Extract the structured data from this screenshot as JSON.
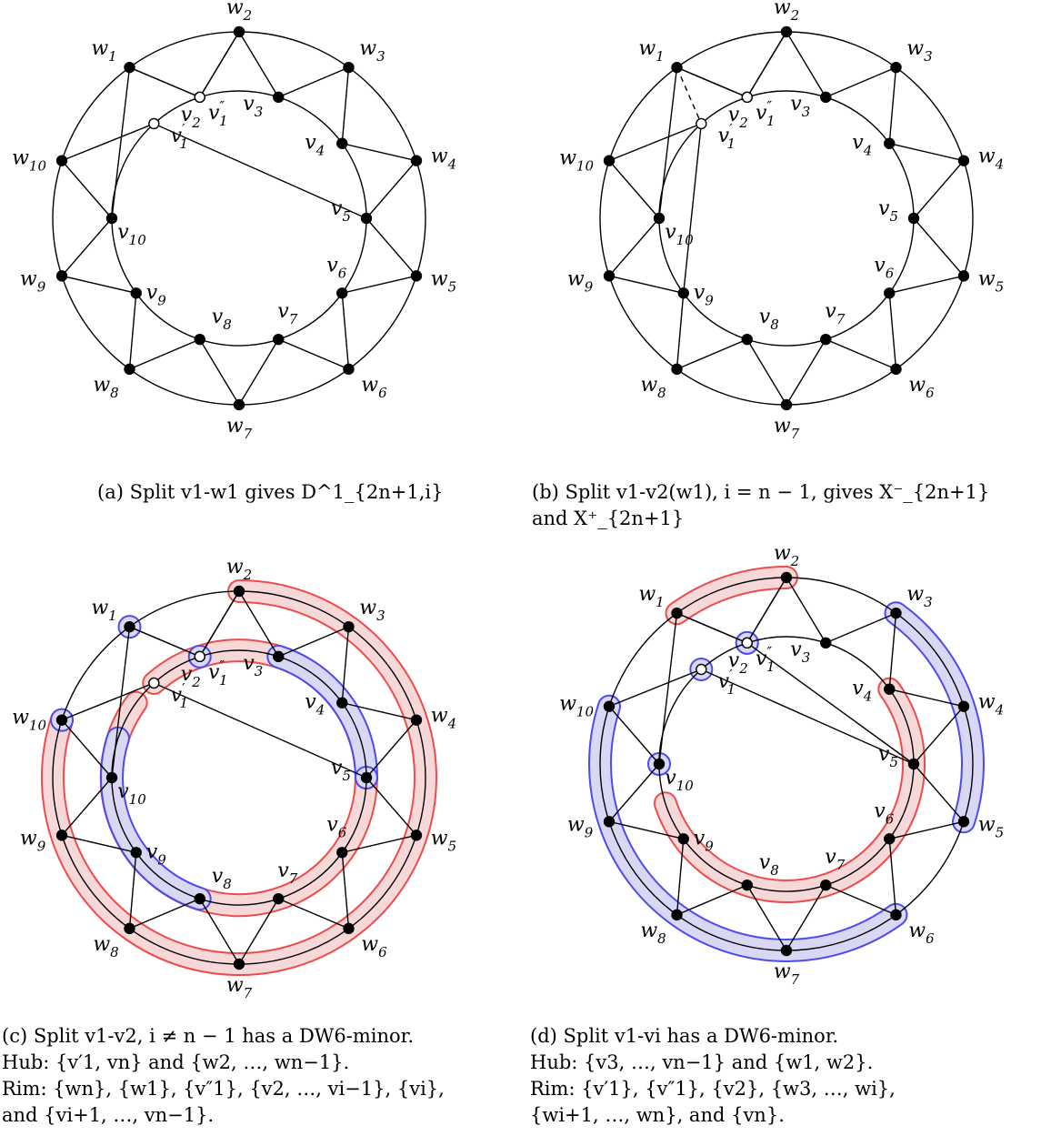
{
  "captions": {
    "a": [
      "(a) Split v1-w1 gives D^1_{2n+1,i}"
    ],
    "b": [
      "(b) Split v1-v2(w1), i = n − 1, gives X⁻_{2n+1}",
      "and X⁺_{2n+1}"
    ],
    "c": [
      "(c) Split v1-v2, i ≠ n − 1 has a DW6-minor.",
      "Hub: {v′1, vn} and {w2, …, wn−1}.",
      "Rim: {wn}, {w1}, {v″1}, {v2, …, vi−1}, {vi},",
      "and {vi+1, …, vn−1}."
    ],
    "d": [
      "(d) Split v1-vi has a DW6-minor.",
      "Hub: {v3, …, vn−1} and {w1, w2}.",
      "Rim:   {v′1},   {v″1},   {v2},   {w3, …, wi},",
      "{wi+1, …, wn}, and {vn}."
    ]
  },
  "labels": {
    "w": [
      "w1",
      "w2",
      "w3",
      "w4",
      "w5",
      "w6",
      "w7",
      "w8",
      "w9",
      "w10"
    ],
    "v": [
      "v1′",
      "v1″",
      "v2",
      "v3",
      "v4",
      "v5",
      "v6",
      "v7",
      "v8",
      "v9",
      "v10"
    ]
  },
  "colors": {
    "red": "#ef4b4b",
    "blue": "#4b4bef",
    "red_fill": "#f7d8d8",
    "blue_fill": "#d8d8f5"
  }
}
